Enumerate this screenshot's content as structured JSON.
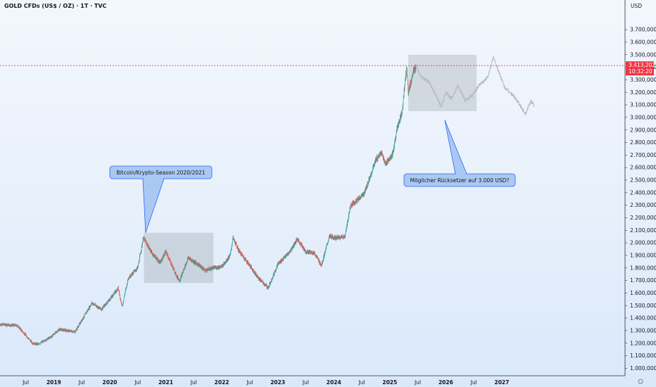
{
  "header": {
    "title": "GOLD CFDs (US$ / OZ) · 1T · TVC"
  },
  "colors": {
    "up": "#26a69a",
    "down": "#ef5350",
    "forecast": "#b8bcc4",
    "box": "#9aa2ad",
    "callout_fill": "#aac9f2",
    "callout_stroke": "#2962ff",
    "price_line": "#f23645",
    "axis_line": "#2a2e39"
  },
  "chart_data": {
    "type": "candlestick",
    "currency_label": "USD",
    "y_ticks": [
      "1.000,000",
      "1.100,000",
      "1.200,000",
      "1.300,000",
      "1.400,000",
      "1.500,000",
      "1.600,000",
      "1.700,000",
      "1.800,000",
      "1.900,000",
      "2.000,000",
      "2.100,000",
      "2.200,000",
      "2.300,000",
      "2.400,000",
      "2.500,000",
      "2.600,000",
      "2.700,000",
      "2.800,000",
      "2.900,000",
      "3.000,000",
      "3.100,000",
      "3.200,000",
      "3.300,000",
      "3.400,000",
      "3.500,000",
      "3.600,000",
      "3.700,000"
    ],
    "y_tick_values": [
      1000,
      1100,
      1200,
      1300,
      1400,
      1500,
      1600,
      1700,
      1800,
      1900,
      2000,
      2100,
      2200,
      2300,
      2400,
      2500,
      2600,
      2700,
      2800,
      2900,
      3000,
      3100,
      3200,
      3300,
      3400,
      3500,
      3600,
      3700
    ],
    "ylim": [
      940,
      3880
    ],
    "x_ticks": [
      {
        "label": "Jul",
        "t": 2018.5,
        "bold": false
      },
      {
        "label": "2019",
        "t": 2019.0,
        "bold": true
      },
      {
        "label": "Jul",
        "t": 2019.5,
        "bold": false
      },
      {
        "label": "2020",
        "t": 2020.0,
        "bold": true
      },
      {
        "label": "Jul",
        "t": 2020.5,
        "bold": false
      },
      {
        "label": "2021",
        "t": 2021.0,
        "bold": true
      },
      {
        "label": "Jul",
        "t": 2021.5,
        "bold": false
      },
      {
        "label": "2022",
        "t": 2022.0,
        "bold": true
      },
      {
        "label": "Jul",
        "t": 2022.5,
        "bold": false
      },
      {
        "label": "2023",
        "t": 2023.0,
        "bold": true
      },
      {
        "label": "Jul",
        "t": 2023.5,
        "bold": false
      },
      {
        "label": "2024",
        "t": 2024.0,
        "bold": true
      },
      {
        "label": "Jul",
        "t": 2024.5,
        "bold": false
      },
      {
        "label": "2025",
        "t": 2025.0,
        "bold": true
      },
      {
        "label": "Jul",
        "t": 2025.5,
        "bold": false
      },
      {
        "label": "2026",
        "t": 2026.0,
        "bold": true
      },
      {
        "label": "Jul",
        "t": 2026.5,
        "bold": false
      },
      {
        "label": "2027",
        "t": 2027.0,
        "bold": true
      }
    ],
    "xlim": [
      2018.04,
      2029.2
    ],
    "price_anchors": [
      [
        2018.04,
        1350
      ],
      [
        2018.35,
        1340
      ],
      [
        2018.62,
        1200
      ],
      [
        2018.72,
        1190
      ],
      [
        2018.95,
        1250
      ],
      [
        2019.1,
        1310
      ],
      [
        2019.38,
        1290
      ],
      [
        2019.55,
        1420
      ],
      [
        2019.68,
        1520
      ],
      [
        2019.85,
        1470
      ],
      [
        2020.02,
        1560
      ],
      [
        2020.15,
        1640
      ],
      [
        2020.22,
        1490
      ],
      [
        2020.33,
        1720
      ],
      [
        2020.5,
        1800
      ],
      [
        2020.6,
        2040
      ],
      [
        2020.75,
        1920
      ],
      [
        2020.9,
        1840
      ],
      [
        2021.0,
        1930
      ],
      [
        2021.2,
        1730
      ],
      [
        2021.25,
        1700
      ],
      [
        2021.4,
        1880
      ],
      [
        2021.6,
        1820
      ],
      [
        2021.7,
        1780
      ],
      [
        2021.85,
        1800
      ],
      [
        2022.0,
        1810
      ],
      [
        2022.15,
        1900
      ],
      [
        2022.2,
        2040
      ],
      [
        2022.3,
        1940
      ],
      [
        2022.5,
        1820
      ],
      [
        2022.65,
        1720
      ],
      [
        2022.83,
        1640
      ],
      [
        2023.0,
        1830
      ],
      [
        2023.2,
        1920
      ],
      [
        2023.35,
        2030
      ],
      [
        2023.5,
        1930
      ],
      [
        2023.65,
        1920
      ],
      [
        2023.78,
        1820
      ],
      [
        2023.92,
        2050
      ],
      [
        2024.05,
        2040
      ],
      [
        2024.2,
        2050
      ],
      [
        2024.3,
        2300
      ],
      [
        2024.45,
        2350
      ],
      [
        2024.55,
        2400
      ],
      [
        2024.75,
        2660
      ],
      [
        2024.85,
        2720
      ],
      [
        2024.92,
        2630
      ],
      [
        2025.05,
        2700
      ],
      [
        2025.13,
        2910
      ],
      [
        2025.22,
        3050
      ],
      [
        2025.3,
        3400
      ],
      [
        2025.33,
        3200
      ],
      [
        2025.42,
        3360
      ],
      [
        2025.47,
        3413
      ]
    ],
    "forecast_anchors": [
      [
        2025.47,
        3413
      ],
      [
        2025.55,
        3330
      ],
      [
        2025.7,
        3280
      ],
      [
        2025.82,
        3180
      ],
      [
        2025.92,
        3080
      ],
      [
        2026.0,
        3200
      ],
      [
        2026.1,
        3150
      ],
      [
        2026.22,
        3260
      ],
      [
        2026.35,
        3130
      ],
      [
        2026.48,
        3180
      ],
      [
        2026.6,
        3260
      ],
      [
        2026.75,
        3320
      ],
      [
        2026.85,
        3480
      ],
      [
        2026.95,
        3360
      ],
      [
        2027.05,
        3240
      ],
      [
        2027.2,
        3180
      ],
      [
        2027.32,
        3100
      ],
      [
        2027.42,
        3030
      ],
      [
        2027.52,
        3130
      ],
      [
        2027.58,
        3090
      ]
    ],
    "last_price": {
      "value": 3413.202,
      "label": "3.413,202",
      "countdown": "10:32:20"
    },
    "annotations": [
      {
        "text": "Bitcoin/Krypto-Season 2020/2021",
        "box": {
          "t0": 2020.61,
          "t1": 2021.85,
          "p0": 1680,
          "p1": 2080
        },
        "pointer_to": {
          "t": 2020.64,
          "p": 2080
        }
      },
      {
        "text": "Möglicher Rücksetzer auf 3.000 USD?",
        "box": {
          "t0": 2025.33,
          "t1": 2026.55,
          "p0": 3050,
          "p1": 3500
        },
        "pointer_to": {
          "t": 2025.98,
          "p": 2980
        }
      }
    ]
  }
}
